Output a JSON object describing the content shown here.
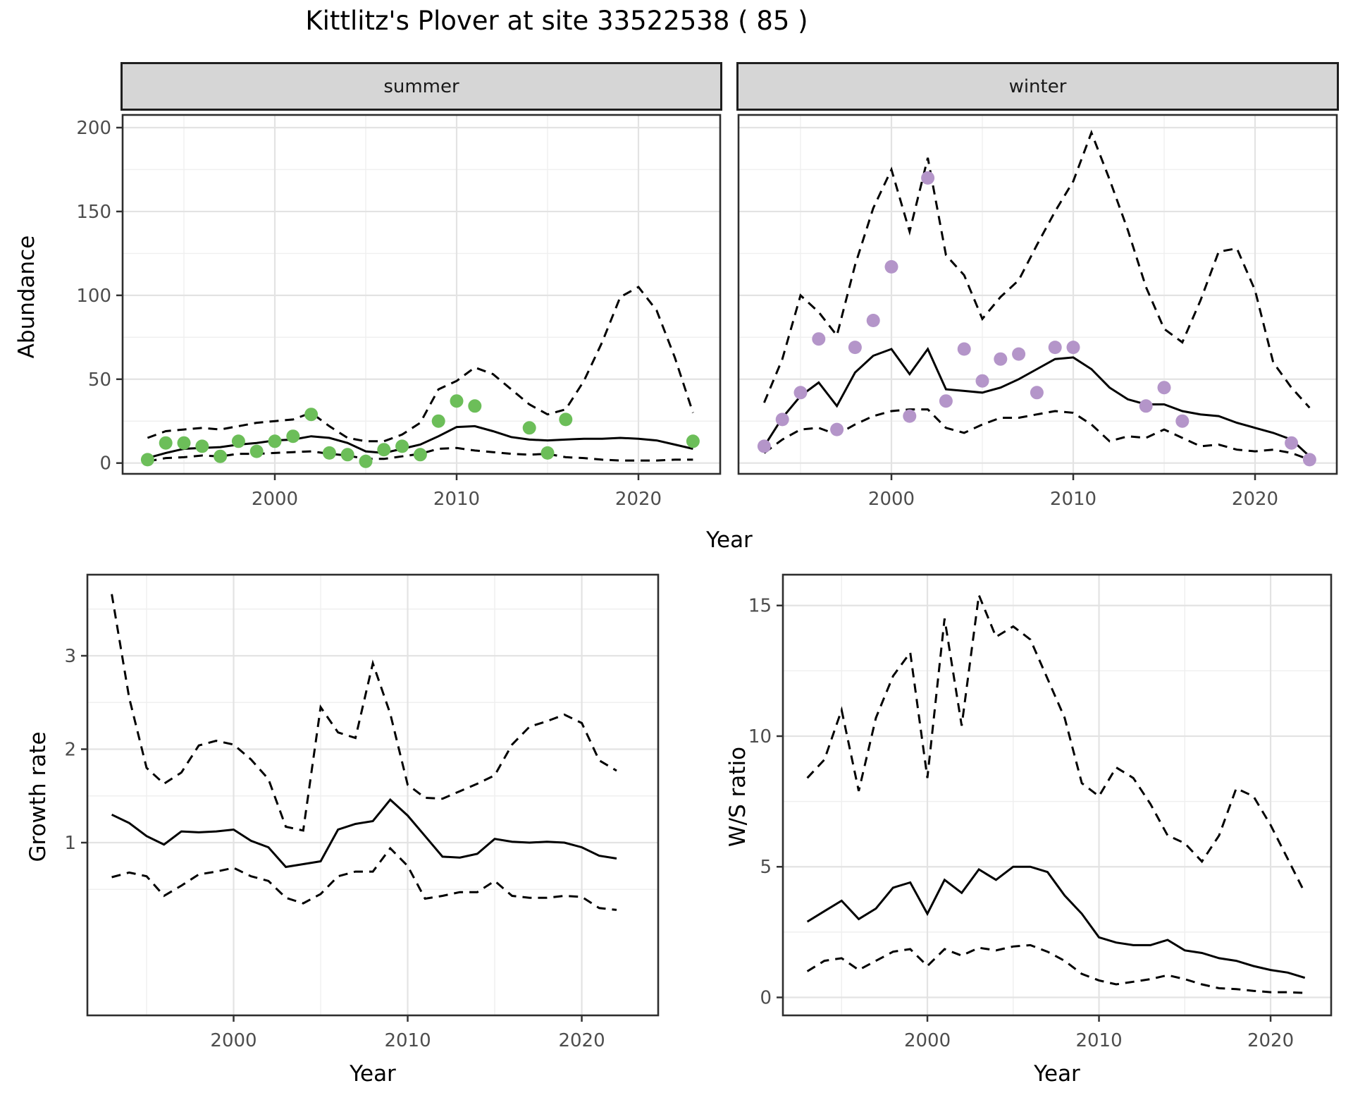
{
  "title": "Kittlitz's Plover at site 33522538 ( 85 )",
  "colors": {
    "summer_point": "#6cbe59",
    "winter_point": "#b495c9",
    "line": "#000000",
    "grid_major": "#e3e3e3",
    "grid_minor": "#efefef",
    "panel_border": "#2e2e2e",
    "strip_bg": "#d6d6d6",
    "tick_text": "#4d4d4d"
  },
  "chart_data": [
    {
      "type": "line+scatter",
      "facet": "summer",
      "ylabel": "Abundance",
      "xlabel": "Year",
      "xlim": [
        1991.628,
        2024.496
      ],
      "ylim": [
        -6.43,
        207.57
      ],
      "xticks": [
        2000,
        2010,
        2020
      ],
      "xminor": [
        1995,
        2005,
        2015
      ],
      "yticks": [
        0,
        50,
        100,
        150,
        200
      ],
      "yminor": [
        25,
        75,
        125,
        175
      ],
      "series": {
        "median": {
          "style": "solid",
          "x": [
            1993,
            1994,
            1995,
            1996,
            1997,
            1998,
            1999,
            2000,
            2001,
            2002,
            2003,
            2004,
            2005,
            2006,
            2007,
            2008,
            2009,
            2010,
            2011,
            2012,
            2013,
            2014,
            2015,
            2016,
            2017,
            2018,
            2019,
            2020,
            2021,
            2022,
            2023
          ],
          "y": [
            3,
            6,
            8.5,
            9,
            9.5,
            11,
            12,
            13.5,
            14,
            16,
            15,
            12,
            7,
            6,
            8.5,
            11,
            16,
            21.5,
            22,
            19,
            15.5,
            14,
            13.5,
            14,
            14.5,
            14.5,
            15,
            14.5,
            13.5,
            11,
            8.5
          ]
        },
        "upper_ci": {
          "style": "dashed",
          "x": [
            1993,
            1994,
            1995,
            1996,
            1997,
            1998,
            1999,
            2000,
            2001,
            2002,
            2003,
            2004,
            2005,
            2006,
            2007,
            2008,
            2009,
            2010,
            2011,
            2012,
            2013,
            2014,
            2015,
            2016,
            2017,
            2018,
            2019,
            2020,
            2021,
            2022,
            2023
          ],
          "y": [
            15,
            19,
            20,
            21,
            20,
            22,
            24,
            25,
            26,
            30,
            22,
            15,
            13,
            13,
            17,
            24,
            44,
            49,
            57,
            53,
            44,
            35,
            29,
            32,
            49,
            72,
            99,
            105,
            91,
            63,
            30
          ]
        },
        "lower_ci": {
          "style": "dashed",
          "x": [
            1993,
            1994,
            1995,
            1996,
            1997,
            1998,
            1999,
            2000,
            2001,
            2002,
            2003,
            2004,
            2005,
            2006,
            2007,
            2008,
            2009,
            2010,
            2011,
            2012,
            2013,
            2014,
            2015,
            2016,
            2017,
            2018,
            2019,
            2020,
            2021,
            2022,
            2023
          ],
          "y": [
            1,
            3,
            3.5,
            4.5,
            4,
            5.5,
            5.5,
            6,
            6.5,
            7,
            5.5,
            4.5,
            2.5,
            2.5,
            4,
            5.5,
            8.5,
            9,
            7.5,
            6.5,
            5.5,
            5,
            5.5,
            3.5,
            3,
            2,
            1.5,
            1.5,
            1.5,
            2,
            2
          ]
        }
      },
      "points": {
        "x": [
          1993,
          1994,
          1995,
          1996,
          1997,
          1998,
          1999,
          2000,
          2001,
          2002,
          2003,
          2004,
          2005,
          2006,
          2007,
          2008,
          2009,
          2010,
          2011,
          2014,
          2015,
          2016,
          2023
        ],
        "y": [
          2,
          12,
          12,
          10,
          4,
          13,
          7,
          13,
          16,
          29,
          6,
          5,
          1,
          8,
          10,
          5,
          25,
          37,
          34,
          21,
          6,
          26,
          13
        ]
      },
      "point_color": "#6cbe59"
    },
    {
      "type": "line+scatter",
      "facet": "winter",
      "ylabel": "",
      "xlabel": "Year",
      "xlim": [
        1991.589,
        2024.496
      ],
      "ylim": [
        -6.43,
        207.57
      ],
      "xticks": [
        2000,
        2010,
        2020
      ],
      "xminor": [
        1995,
        2005,
        2015
      ],
      "yticks": [
        0,
        50,
        100,
        150,
        200
      ],
      "yminor": [
        25,
        75,
        125,
        175
      ],
      "series": {
        "median": {
          "style": "solid",
          "x": [
            1993,
            1994,
            1995,
            1996,
            1997,
            1998,
            1999,
            2000,
            2001,
            2002,
            2003,
            2004,
            2005,
            2006,
            2007,
            2008,
            2009,
            2010,
            2011,
            2012,
            2013,
            2014,
            2015,
            2016,
            2017,
            2018,
            2019,
            2020,
            2021,
            2022,
            2023
          ],
          "y": [
            10,
            27,
            40,
            48,
            34,
            54,
            64,
            68,
            53,
            68,
            44,
            43,
            42,
            45,
            50,
            56,
            62,
            63,
            56,
            45,
            38,
            35,
            35,
            31,
            29,
            28,
            24,
            21,
            18,
            14,
            4
          ]
        },
        "upper_ci": {
          "style": "dashed",
          "x": [
            1993,
            1994,
            1995,
            1996,
            1997,
            1998,
            1999,
            2000,
            2001,
            2002,
            2003,
            2004,
            2005,
            2006,
            2007,
            2008,
            2009,
            2010,
            2011,
            2012,
            2013,
            2014,
            2015,
            2016,
            2017,
            2018,
            2019,
            2020,
            2021,
            2022,
            2023
          ],
          "y": [
            36,
            62,
            100,
            90,
            76,
            118,
            152,
            175,
            138,
            182,
            124,
            112,
            86,
            99,
            109,
            130,
            150,
            168,
            197,
            169,
            139,
            105,
            80,
            72,
            97,
            126,
            128,
            103,
            60,
            45,
            33
          ]
        },
        "lower_ci": {
          "style": "dashed",
          "x": [
            1993,
            1994,
            1995,
            1996,
            1997,
            1998,
            1999,
            2000,
            2001,
            2002,
            2003,
            2004,
            2005,
            2006,
            2007,
            2008,
            2009,
            2010,
            2011,
            2012,
            2013,
            2014,
            2015,
            2016,
            2017,
            2018,
            2019,
            2020,
            2021,
            2022,
            2023
          ],
          "y": [
            6,
            14,
            20,
            21,
            17,
            23,
            28,
            31,
            32,
            32,
            21,
            18,
            23,
            27,
            27,
            29,
            31,
            30,
            23,
            13,
            16,
            15,
            20,
            15,
            10,
            11,
            8,
            7,
            8,
            6,
            2
          ]
        }
      },
      "points": {
        "x": [
          1993,
          1994,
          1995,
          1996,
          1997,
          1998,
          1999,
          2000,
          2001,
          2002,
          2003,
          2004,
          2005,
          2006,
          2007,
          2008,
          2009,
          2010,
          2014,
          2015,
          2016,
          2022,
          2023
        ],
        "y": [
          10,
          26,
          42,
          74,
          20,
          69,
          85,
          117,
          28,
          170,
          37,
          68,
          49,
          62,
          65,
          42,
          69,
          69,
          34,
          45,
          25,
          12,
          2
        ]
      },
      "point_color": "#b495c9"
    },
    {
      "type": "line",
      "facet": "",
      "ylabel": "Growth rate",
      "xlabel": "Year",
      "xlim": [
        1991.6,
        2024.39
      ],
      "ylim": [
        -0.849,
        3.868
      ],
      "xticks": [
        2000,
        2010,
        2020
      ],
      "xminor": [
        1995,
        2005,
        2015
      ],
      "yticks": [
        1,
        2,
        3
      ],
      "yminor": [
        0.5,
        1.5,
        2.5,
        3.5
      ],
      "series": {
        "median": {
          "style": "solid",
          "x": [
            1993,
            1994,
            1995,
            1996,
            1997,
            1998,
            1999,
            2000,
            2001,
            2002,
            2003,
            2004,
            2005,
            2006,
            2007,
            2008,
            2009,
            2010,
            2011,
            2012,
            2013,
            2014,
            2015,
            2016,
            2017,
            2018,
            2019,
            2020,
            2021,
            2022
          ],
          "y": [
            1.3,
            1.21,
            1.07,
            0.98,
            1.12,
            1.11,
            1.12,
            1.14,
            1.02,
            0.95,
            0.74,
            0.77,
            0.8,
            1.14,
            1.2,
            1.23,
            1.46,
            1.29,
            1.07,
            0.85,
            0.84,
            0.88,
            1.04,
            1.01,
            1.0,
            1.01,
            1.0,
            0.95,
            0.86,
            0.83
          ]
        },
        "upper_ci": {
          "style": "dashed",
          "x": [
            1993,
            1994,
            1995,
            1996,
            1997,
            1998,
            1999,
            2000,
            2001,
            2002,
            2003,
            2004,
            2005,
            2006,
            2007,
            2008,
            2009,
            2010,
            2011,
            2012,
            2013,
            2014,
            2015,
            2016,
            2017,
            2018,
            2019,
            2020,
            2021,
            2022
          ],
          "y": [
            3.66,
            2.55,
            1.8,
            1.63,
            1.75,
            2.04,
            2.09,
            2.05,
            1.89,
            1.68,
            1.17,
            1.13,
            2.45,
            2.18,
            2.12,
            2.92,
            2.38,
            1.62,
            1.48,
            1.47,
            1.55,
            1.63,
            1.72,
            2.05,
            2.24,
            2.3,
            2.37,
            2.28,
            1.88,
            1.77
          ]
        },
        "lower_ci": {
          "style": "dashed",
          "x": [
            1993,
            1994,
            1995,
            1996,
            1997,
            1998,
            1999,
            2000,
            2001,
            2002,
            2003,
            2004,
            2005,
            2006,
            2007,
            2008,
            2009,
            2010,
            2011,
            2012,
            2013,
            2014,
            2015,
            2016,
            2017,
            2018,
            2019,
            2020,
            2021,
            2022
          ],
          "y": [
            0.63,
            0.68,
            0.64,
            0.43,
            0.54,
            0.66,
            0.69,
            0.73,
            0.64,
            0.59,
            0.41,
            0.35,
            0.45,
            0.64,
            0.69,
            0.69,
            0.94,
            0.75,
            0.4,
            0.43,
            0.47,
            0.47,
            0.59,
            0.43,
            0.41,
            0.41,
            0.43,
            0.42,
            0.3,
            0.28
          ]
        }
      },
      "points": null,
      "point_color": ""
    },
    {
      "type": "line",
      "facet": "",
      "ylabel": "W/S ratio",
      "xlabel": "Year",
      "xlim": [
        1991.58,
        2023.53
      ],
      "ylim": [
        -0.688,
        16.18
      ],
      "xticks": [
        2000,
        2010,
        2020
      ],
      "xminor": [
        1995,
        2005,
        2015
      ],
      "yticks": [
        0,
        5,
        10,
        15
      ],
      "yminor": [
        2.5,
        7.5,
        12.5
      ],
      "series": {
        "median": {
          "style": "solid",
          "x": [
            1993,
            1994,
            1995,
            1996,
            1997,
            1998,
            1999,
            2000,
            2001,
            2002,
            2003,
            2004,
            2005,
            2006,
            2007,
            2008,
            2009,
            2010,
            2011,
            2012,
            2013,
            2014,
            2015,
            2016,
            2017,
            2018,
            2019,
            2020,
            2021,
            2022
          ],
          "y": [
            2.9,
            3.3,
            3.7,
            3.0,
            3.4,
            4.2,
            4.4,
            3.2,
            4.5,
            4.0,
            4.9,
            4.5,
            5.0,
            5.0,
            4.8,
            3.9,
            3.2,
            2.3,
            2.1,
            2.0,
            2.0,
            2.2,
            1.8,
            1.7,
            1.5,
            1.4,
            1.2,
            1.05,
            0.95,
            0.75
          ]
        },
        "upper_ci": {
          "style": "dashed",
          "x": [
            1993,
            1994,
            1995,
            1996,
            1997,
            1998,
            1999,
            2000,
            2001,
            2002,
            2003,
            2004,
            2005,
            2006,
            2007,
            2008,
            2009,
            2010,
            2011,
            2012,
            2013,
            2014,
            2015,
            2016,
            2017,
            2018,
            2019,
            2020,
            2021,
            2022
          ],
          "y": [
            8.4,
            9.1,
            11.0,
            7.9,
            10.7,
            12.3,
            13.2,
            8.4,
            14.5,
            10.4,
            15.4,
            13.8,
            14.2,
            13.7,
            12.2,
            10.7,
            8.2,
            7.7,
            8.8,
            8.4,
            7.4,
            6.2,
            5.9,
            5.2,
            6.2,
            8.0,
            7.7,
            6.6,
            5.3,
            4.0
          ]
        },
        "lower_ci": {
          "style": "dashed",
          "x": [
            1993,
            1994,
            1995,
            1996,
            1997,
            1998,
            1999,
            2000,
            2001,
            2002,
            2003,
            2004,
            2005,
            2006,
            2007,
            2008,
            2009,
            2010,
            2011,
            2012,
            2013,
            2014,
            2015,
            2016,
            2017,
            2018,
            2019,
            2020,
            2021,
            2022
          ],
          "y": [
            1.0,
            1.4,
            1.5,
            1.05,
            1.4,
            1.75,
            1.85,
            1.2,
            1.85,
            1.6,
            1.9,
            1.8,
            1.95,
            2.0,
            1.75,
            1.4,
            0.9,
            0.65,
            0.5,
            0.6,
            0.7,
            0.85,
            0.7,
            0.5,
            0.35,
            0.32,
            0.25,
            0.2,
            0.2,
            0.17
          ]
        }
      },
      "points": null,
      "point_color": ""
    }
  ]
}
